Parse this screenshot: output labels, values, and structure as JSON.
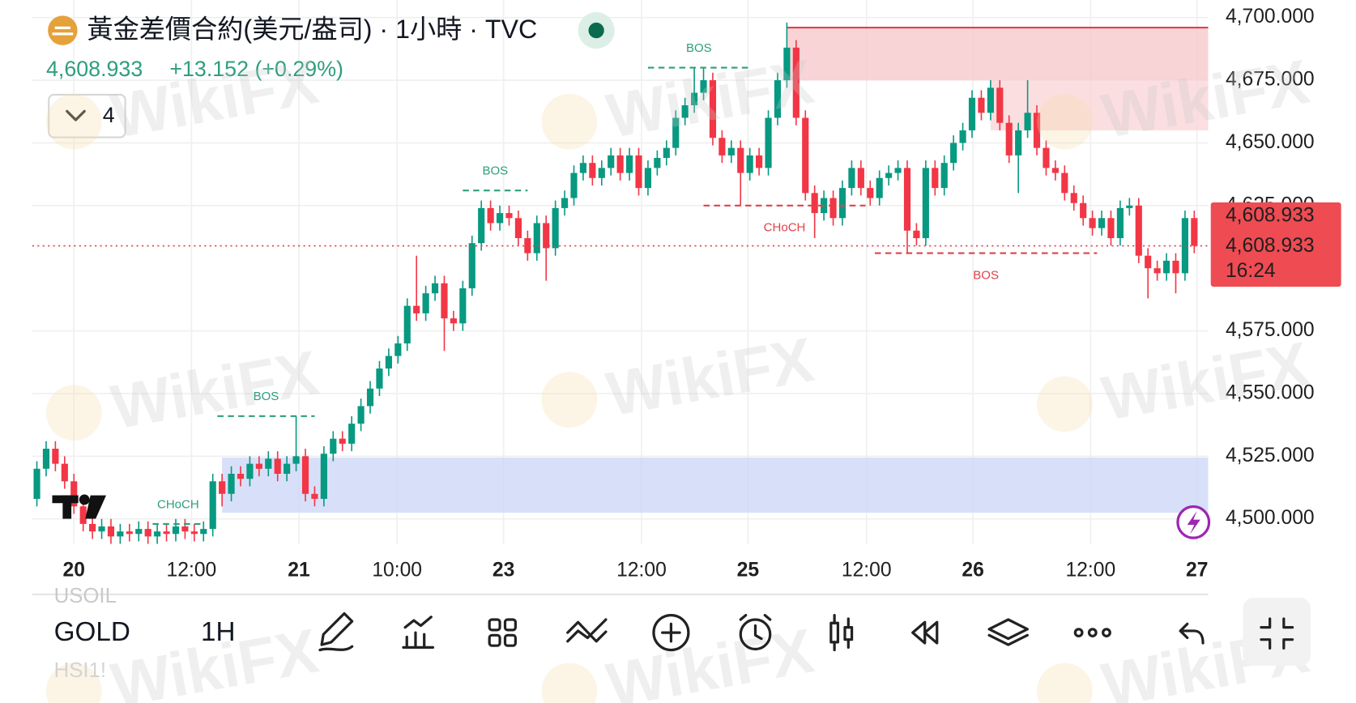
{
  "header": {
    "title": "黃金差價合約(美元/盎司) · 1小時 · TVC",
    "price": "4,608.933",
    "change": "+13.152 (+0.29%)",
    "indicator_count": "4"
  },
  "chart_data": {
    "type": "candlestick",
    "up_color": "#089981",
    "down_color": "#f23645",
    "open": [
      4508,
      4520,
      4528,
      4522,
      4515,
      4505,
      4498,
      4495,
      4497,
      4493,
      4495,
      4494,
      4496,
      4493,
      4495,
      4494,
      4497,
      4495,
      4494,
      4496,
      4515,
      4510,
      4518,
      4516,
      4522,
      4520,
      4524,
      4518,
      4522,
      4525,
      4510,
      4508,
      4526,
      4532,
      4530,
      4538,
      4545,
      4552,
      4560,
      4565,
      4570,
      4585,
      4582,
      4590,
      4594,
      4580,
      4578,
      4592,
      4610,
      4624,
      4618,
      4622,
      4620,
      4612,
      4606,
      4618,
      4608,
      4624,
      4628,
      4638,
      4642,
      4636,
      4640,
      4645,
      4638,
      4645,
      4632,
      4640,
      4644,
      4648,
      4660,
      4665,
      4670,
      4675,
      4652,
      4645,
      4648,
      4638,
      4645,
      4640,
      4660,
      4675,
      4688,
      4660,
      4630,
      4622,
      4628,
      4620,
      4632,
      4640,
      4632,
      4628,
      4636,
      4638,
      4640,
      4615,
      4612,
      4640,
      4632,
      4642,
      4650,
      4655,
      4668,
      4662,
      4672,
      4658,
      4645,
      4655,
      4662,
      4648,
      4640,
      4638,
      4630,
      4626,
      4620,
      4616,
      4620,
      4612,
      4624,
      4625,
      4605,
      4600,
      4598,
      4603,
      4598,
      4620
    ],
    "high": [
      4523,
      4531,
      4531,
      4525,
      4518,
      4508,
      4501,
      4500,
      4500,
      4498,
      4498,
      4499,
      4499,
      4498,
      4498,
      4500,
      4500,
      4498,
      4499,
      4518,
      4518,
      4521,
      4521,
      4525,
      4525,
      4527,
      4527,
      4525,
      4541,
      4528,
      4513,
      4529,
      4535,
      4535,
      4541,
      4548,
      4555,
      4563,
      4568,
      4573,
      4588,
      4605,
      4593,
      4597,
      4597,
      4583,
      4595,
      4613,
      4627,
      4627,
      4625,
      4625,
      4623,
      4615,
      4621,
      4621,
      4627,
      4631,
      4641,
      4645,
      4645,
      4643,
      4648,
      4648,
      4648,
      4648,
      4643,
      4647,
      4651,
      4663,
      4668,
      4680,
      4680,
      4678,
      4655,
      4651,
      4651,
      4648,
      4648,
      4663,
      4678,
      4698,
      4691,
      4663,
      4633,
      4631,
      4631,
      4635,
      4643,
      4643,
      4635,
      4639,
      4641,
      4643,
      4643,
      4618,
      4643,
      4643,
      4645,
      4653,
      4658,
      4671,
      4671,
      4675,
      4675,
      4661,
      4658,
      4675,
      4665,
      4651,
      4643,
      4641,
      4633,
      4629,
      4623,
      4623,
      4623,
      4627,
      4628,
      4628,
      4608,
      4603,
      4606,
      4606,
      4623,
      4623
    ],
    "low": [
      4505,
      4517,
      4519,
      4512,
      4502,
      4495,
      4492,
      4492,
      4490,
      4490,
      4491,
      4491,
      4490,
      4490,
      4491,
      4491,
      4492,
      4491,
      4491,
      4493,
      4505,
      4507,
      4513,
      4513,
      4517,
      4517,
      4515,
      4515,
      4519,
      4507,
      4505,
      4505,
      4523,
      4527,
      4527,
      4535,
      4542,
      4549,
      4557,
      4562,
      4567,
      4579,
      4579,
      4587,
      4567,
      4575,
      4575,
      4589,
      4607,
      4615,
      4615,
      4617,
      4609,
      4603,
      4603,
      4595,
      4605,
      4621,
      4625,
      4635,
      4633,
      4633,
      4637,
      4635,
      4635,
      4629,
      4629,
      4637,
      4641,
      4645,
      4657,
      4662,
      4667,
      4649,
      4642,
      4642,
      4625,
      4635,
      4637,
      4637,
      4657,
      4672,
      4657,
      4627,
      4612,
      4619,
      4617,
      4617,
      4629,
      4629,
      4625,
      4625,
      4633,
      4635,
      4606,
      4609,
      4609,
      4629,
      4629,
      4639,
      4647,
      4652,
      4659,
      4659,
      4655,
      4642,
      4630,
      4652,
      4645,
      4637,
      4635,
      4627,
      4623,
      4617,
      4613,
      4613,
      4609,
      4609,
      4621,
      4602,
      4588,
      4595,
      4595,
      4590,
      4595,
      4606
    ],
    "close": [
      4520,
      4528,
      4522,
      4515,
      4505,
      4498,
      4495,
      4497,
      4493,
      4495,
      4494,
      4496,
      4493,
      4495,
      4494,
      4497,
      4495,
      4494,
      4496,
      4515,
      4510,
      4518,
      4516,
      4522,
      4520,
      4524,
      4518,
      4522,
      4525,
      4510,
      4508,
      4526,
      4532,
      4530,
      4538,
      4545,
      4552,
      4560,
      4565,
      4570,
      4585,
      4582,
      4590,
      4594,
      4580,
      4578,
      4592,
      4610,
      4624,
      4618,
      4622,
      4620,
      4612,
      4606,
      4618,
      4608,
      4624,
      4628,
      4638,
      4642,
      4636,
      4640,
      4645,
      4638,
      4645,
      4632,
      4640,
      4644,
      4648,
      4660,
      4665,
      4670,
      4675,
      4652,
      4645,
      4648,
      4638,
      4645,
      4640,
      4660,
      4675,
      4688,
      4660,
      4630,
      4622,
      4628,
      4620,
      4632,
      4640,
      4632,
      4628,
      4636,
      4638,
      4640,
      4615,
      4612,
      4640,
      4632,
      4642,
      4650,
      4655,
      4668,
      4662,
      4672,
      4658,
      4645,
      4655,
      4662,
      4648,
      4640,
      4638,
      4630,
      4626,
      4620,
      4616,
      4620,
      4612,
      4624,
      4625,
      4605,
      4600,
      4598,
      4603,
      4598,
      4620,
      4608.933
    ],
    "xlim": [
      -0.5,
      126.5
    ],
    "ylim": [
      4490,
      4707
    ],
    "yticks": [
      {
        "value": 4500,
        "label": "4,500.000"
      },
      {
        "value": 4525,
        "label": "4,525.000"
      },
      {
        "value": 4550,
        "label": "4,550.000"
      },
      {
        "value": 4575,
        "label": "4,575.000"
      },
      {
        "value": 4625,
        "label": "4,625.000"
      },
      {
        "value": 4650,
        "label": "4,650.000"
      },
      {
        "value": 4675,
        "label": "4,675.000"
      },
      {
        "value": 4700,
        "label": "4,700.000"
      }
    ],
    "xticks": [
      {
        "value": 4,
        "label": "20"
      },
      {
        "value": 16.7,
        "label": "12:00"
      },
      {
        "value": 28.3,
        "label": "21"
      },
      {
        "value": 38.9,
        "label": "10:00"
      },
      {
        "value": 50.4,
        "label": "23"
      },
      {
        "value": 65.3,
        "label": "12:00"
      },
      {
        "value": 76.8,
        "label": "25"
      },
      {
        "value": 89.6,
        "label": "12:00"
      },
      {
        "value": 101.1,
        "label": "26"
      },
      {
        "value": 113.8,
        "label": "12:00"
      },
      {
        "value": 125.3,
        "label": "27"
      }
    ],
    "grid": true,
    "last_price": {
      "value": 4608.933,
      "label": "4,608.933"
    },
    "countdown": "16:24",
    "zones": [
      {
        "start": 81,
        "low": 4675,
        "high": 4696,
        "color": "#f7c5c9"
      },
      {
        "start": 103,
        "low": 4655,
        "high": 4675,
        "color": "#f9d3d6"
      },
      {
        "start": 20,
        "low": 4502.5,
        "high": 4524.5,
        "color": "#c9d6f5"
      }
    ],
    "structure": [
      {
        "label": "CHoCH",
        "level": 4498,
        "start": 12.5,
        "end": 18,
        "color": "#2e9e7e"
      },
      {
        "label": "BOS",
        "level": 4541,
        "start": 19.5,
        "end": 30,
        "color": "#2e9e7e"
      },
      {
        "label": "BOS",
        "level": 4631,
        "start": 46,
        "end": 53,
        "color": "#2e9e7e"
      },
      {
        "label": "BOS",
        "level": 4680,
        "start": 66,
        "end": 77,
        "color": "#2e9e7e"
      },
      {
        "label": "CHoCH",
        "level": 4625,
        "start": 72,
        "end": 89.5,
        "color": "#e0414a"
      },
      {
        "label": "BOS",
        "level": 4606,
        "start": 90.5,
        "end": 114.5,
        "color": "#e0414a"
      }
    ]
  },
  "toolbar": {
    "symbol": "GOLD",
    "interval": "1H"
  },
  "background_symbols": [
    "USOIL",
    "HSI1!"
  ],
  "watermark": "WikiFX"
}
